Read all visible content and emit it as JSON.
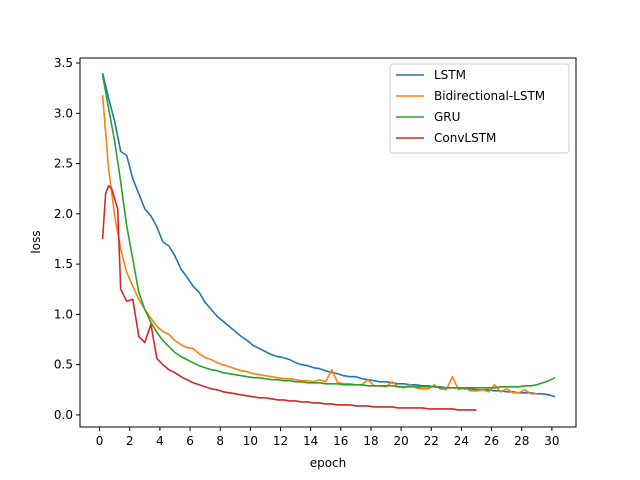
{
  "chart_data": {
    "type": "line",
    "xlabel": "epoch",
    "ylabel": "loss",
    "xlim": [
      -1.3,
      31.6
    ],
    "ylim": [
      -0.12,
      3.55
    ],
    "xticks": [
      "0",
      "2",
      "4",
      "6",
      "8",
      "10",
      "12",
      "14",
      "16",
      "18",
      "20",
      "22",
      "24",
      "26",
      "28",
      "30"
    ],
    "yticks": [
      "0.0",
      "0.5",
      "1.0",
      "1.5",
      "2.0",
      "2.5",
      "3.0",
      "3.5"
    ],
    "legend_position": "top-right",
    "series": [
      {
        "name": "LSTM",
        "color": "#1f77b4",
        "x": [
          0.2,
          0.6,
          1.0,
          1.4,
          1.8,
          2.2,
          2.6,
          3.0,
          3.4,
          3.8,
          4.2,
          4.6,
          5.0,
          5.4,
          5.8,
          6.2,
          6.6,
          7.0,
          7.4,
          7.8,
          8.2,
          8.6,
          9.0,
          9.4,
          9.8,
          10.2,
          10.6,
          11.0,
          11.4,
          11.8,
          12.2,
          12.6,
          13.0,
          13.4,
          13.8,
          14.2,
          14.6,
          15.0,
          15.4,
          15.8,
          16.2,
          16.6,
          17.0,
          17.4,
          17.8,
          18.2,
          18.6,
          19.0,
          19.4,
          19.8,
          20.2,
          20.6,
          21.0,
          21.4,
          21.8,
          22.2,
          22.6,
          23.0,
          23.4,
          23.8,
          24.2,
          24.6,
          25.0,
          25.4,
          25.8,
          26.2,
          26.6,
          27.0,
          27.4,
          27.8,
          28.2,
          28.6,
          29.0,
          29.4,
          29.8,
          30.2
        ],
        "y": [
          3.4,
          3.15,
          2.92,
          2.62,
          2.58,
          2.35,
          2.2,
          2.05,
          1.98,
          1.87,
          1.72,
          1.68,
          1.58,
          1.45,
          1.37,
          1.28,
          1.22,
          1.12,
          1.05,
          0.98,
          0.93,
          0.88,
          0.83,
          0.78,
          0.74,
          0.69,
          0.66,
          0.63,
          0.6,
          0.58,
          0.57,
          0.55,
          0.52,
          0.5,
          0.49,
          0.47,
          0.46,
          0.44,
          0.42,
          0.41,
          0.39,
          0.38,
          0.38,
          0.36,
          0.35,
          0.34,
          0.33,
          0.33,
          0.32,
          0.31,
          0.31,
          0.3,
          0.3,
          0.29,
          0.29,
          0.28,
          0.28,
          0.27,
          0.27,
          0.27,
          0.26,
          0.26,
          0.25,
          0.25,
          0.25,
          0.24,
          0.24,
          0.23,
          0.23,
          0.22,
          0.22,
          0.22,
          0.21,
          0.21,
          0.2,
          0.18
        ]
      },
      {
        "name": "Bidirectional-LSTM",
        "color": "#ff7f0e",
        "x": [
          0.2,
          0.6,
          1.0,
          1.4,
          1.8,
          2.2,
          2.6,
          3.0,
          3.4,
          3.8,
          4.2,
          4.6,
          5.0,
          5.4,
          5.8,
          6.2,
          6.6,
          7.0,
          7.4,
          7.8,
          8.2,
          8.6,
          9.0,
          9.4,
          9.8,
          10.2,
          10.6,
          11.0,
          11.4,
          11.8,
          12.2,
          12.6,
          13.0,
          13.4,
          13.8,
          14.2,
          14.6,
          15.0,
          15.4,
          15.8,
          16.2,
          16.6,
          17.0,
          17.4,
          17.8,
          18.2,
          18.6,
          19.0,
          19.4,
          19.8,
          20.2,
          20.6,
          21.0,
          21.4,
          21.8,
          22.2,
          22.6,
          23.0,
          23.4,
          23.8,
          24.2,
          24.6,
          25.0,
          25.4,
          25.8,
          26.2,
          26.6,
          27.0,
          27.4,
          27.8,
          28.2,
          28.6,
          29.0
        ],
        "y": [
          3.18,
          2.45,
          1.98,
          1.65,
          1.42,
          1.28,
          1.15,
          1.05,
          0.96,
          0.88,
          0.83,
          0.8,
          0.74,
          0.7,
          0.67,
          0.66,
          0.61,
          0.57,
          0.55,
          0.52,
          0.5,
          0.48,
          0.46,
          0.44,
          0.43,
          0.41,
          0.4,
          0.39,
          0.38,
          0.37,
          0.36,
          0.36,
          0.35,
          0.34,
          0.34,
          0.33,
          0.35,
          0.33,
          0.45,
          0.32,
          0.31,
          0.31,
          0.3,
          0.3,
          0.35,
          0.29,
          0.29,
          0.28,
          0.33,
          0.28,
          0.27,
          0.3,
          0.27,
          0.26,
          0.26,
          0.3,
          0.26,
          0.25,
          0.38,
          0.25,
          0.27,
          0.24,
          0.24,
          0.25,
          0.23,
          0.3,
          0.23,
          0.26,
          0.22,
          0.22,
          0.25,
          0.21,
          0.21
        ]
      },
      {
        "name": "GRU",
        "color": "#2ca02c",
        "x": [
          0.2,
          0.6,
          1.0,
          1.4,
          1.8,
          2.2,
          2.6,
          3.0,
          3.4,
          3.8,
          4.2,
          4.6,
          5.0,
          5.4,
          5.8,
          6.2,
          6.6,
          7.0,
          7.4,
          7.8,
          8.2,
          8.6,
          9.0,
          9.4,
          9.8,
          10.2,
          10.6,
          11.0,
          11.4,
          11.8,
          12.2,
          12.6,
          13.0,
          13.4,
          13.8,
          14.2,
          14.6,
          15.0,
          15.4,
          15.8,
          16.2,
          16.6,
          17.0,
          17.4,
          17.8,
          18.2,
          18.6,
          19.0,
          19.4,
          19.8,
          20.2,
          20.6,
          21.0,
          21.4,
          21.8,
          22.2,
          22.6,
          23.0,
          23.4,
          23.8,
          24.2,
          24.6,
          25.0,
          25.4,
          25.8,
          26.2,
          26.6,
          27.0,
          27.4,
          27.8,
          28.2,
          28.6,
          29.0,
          29.4,
          29.8,
          30.2
        ],
        "y": [
          3.38,
          3.05,
          2.72,
          2.32,
          1.88,
          1.55,
          1.22,
          1.05,
          0.92,
          0.82,
          0.74,
          0.68,
          0.62,
          0.58,
          0.55,
          0.52,
          0.49,
          0.47,
          0.45,
          0.44,
          0.42,
          0.41,
          0.4,
          0.39,
          0.38,
          0.37,
          0.37,
          0.36,
          0.35,
          0.35,
          0.34,
          0.34,
          0.33,
          0.33,
          0.32,
          0.32,
          0.32,
          0.31,
          0.31,
          0.31,
          0.3,
          0.3,
          0.3,
          0.3,
          0.29,
          0.29,
          0.29,
          0.29,
          0.29,
          0.28,
          0.28,
          0.28,
          0.28,
          0.28,
          0.28,
          0.28,
          0.27,
          0.27,
          0.27,
          0.27,
          0.27,
          0.27,
          0.27,
          0.27,
          0.27,
          0.27,
          0.28,
          0.28,
          0.28,
          0.28,
          0.29,
          0.29,
          0.3,
          0.32,
          0.34,
          0.37
        ]
      },
      {
        "name": "ConvLSTM",
        "color": "#d62728",
        "x": [
          0.2,
          0.4,
          0.6,
          0.8,
          1.0,
          1.2,
          1.4,
          1.8,
          2.2,
          2.6,
          3.0,
          3.4,
          3.8,
          4.2,
          4.6,
          5.0,
          5.4,
          5.8,
          6.2,
          6.6,
          7.0,
          7.4,
          7.8,
          8.2,
          8.6,
          9.0,
          9.4,
          9.8,
          10.2,
          10.6,
          11.0,
          11.4,
          11.8,
          12.2,
          12.6,
          13.0,
          13.4,
          13.8,
          14.2,
          14.6,
          15.0,
          15.4,
          15.8,
          16.2,
          16.6,
          17.0,
          17.4,
          17.8,
          18.2,
          18.6,
          19.0,
          19.4,
          19.8,
          20.2,
          20.6,
          21.0,
          21.4,
          21.8,
          22.2,
          22.6,
          23.0,
          23.4,
          23.8,
          24.2,
          24.6,
          25.0
        ],
        "y": [
          1.75,
          2.2,
          2.28,
          2.25,
          2.15,
          2.05,
          1.25,
          1.13,
          1.15,
          0.78,
          0.72,
          0.9,
          0.56,
          0.5,
          0.45,
          0.42,
          0.38,
          0.35,
          0.32,
          0.3,
          0.28,
          0.26,
          0.25,
          0.23,
          0.22,
          0.21,
          0.2,
          0.19,
          0.18,
          0.17,
          0.17,
          0.16,
          0.15,
          0.15,
          0.14,
          0.14,
          0.13,
          0.13,
          0.12,
          0.12,
          0.11,
          0.11,
          0.1,
          0.1,
          0.1,
          0.09,
          0.09,
          0.09,
          0.08,
          0.08,
          0.08,
          0.08,
          0.07,
          0.07,
          0.07,
          0.07,
          0.07,
          0.06,
          0.06,
          0.06,
          0.06,
          0.06,
          0.05,
          0.05,
          0.05,
          0.05
        ]
      }
    ]
  }
}
